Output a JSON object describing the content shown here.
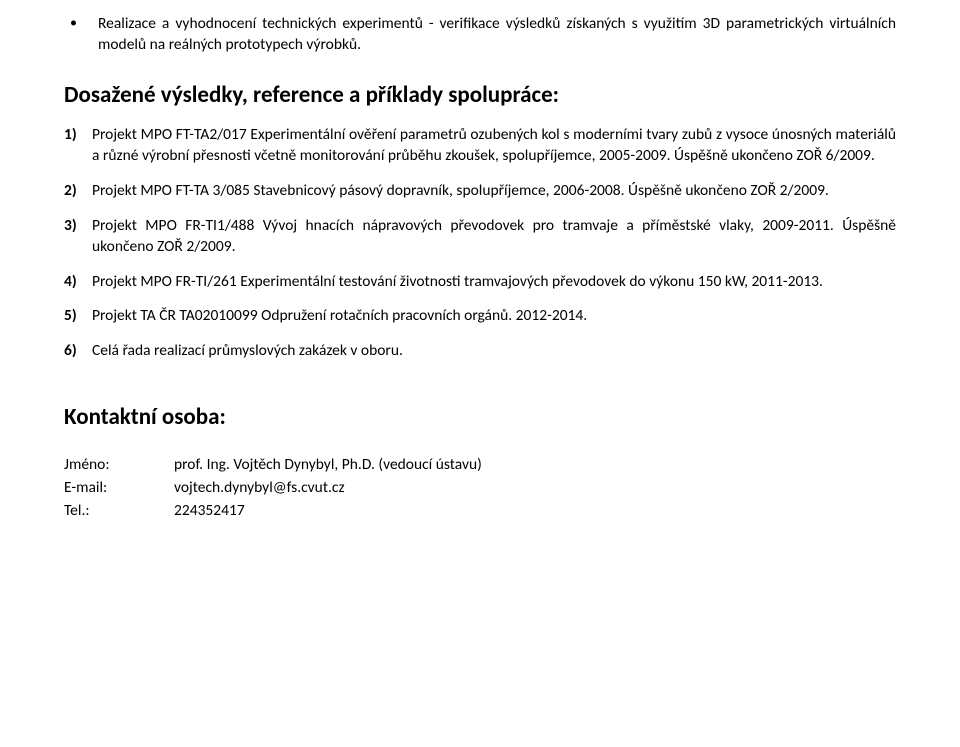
{
  "bullet": {
    "text": "Realizace a vyhodnocení technických experimentů - verifikace výsledků získaných s využitím 3D parametrických virtuálních modelů na reálných prototypech výrobků."
  },
  "results_heading": "Dosažené výsledky, reference a příklady spolupráce:",
  "items": [
    {
      "num": "1)",
      "text": "Projekt MPO FT-TA2/017 Experimentální ověření parametrů ozubených kol s moderními tvary zubů z vysoce únosných materiálů a různé výrobní přesnosti včetně monitorování průběhu zkoušek, spolupříjemce, 2005-2009. Úspěšně ukončeno ZOŘ 6/2009."
    },
    {
      "num": "2)",
      "text": "Projekt MPO FT-TA 3/085 Stavebnicový pásový dopravník, spolupříjemce, 2006-2008. Úspěšně ukončeno ZOŘ 2/2009."
    },
    {
      "num": "3)",
      "text": "Projekt MPO FR-TI1/488 Vývoj hnacích nápravových převodovek pro tramvaje a příměstské vlaky, 2009-2011. Úspěšně ukončeno ZOŘ 2/2009."
    },
    {
      "num": "4)",
      "text": "Projekt MPO FR-TI/261 Experimentální testování životnosti tramvajových převodovek do výkonu 150 kW, 2011-2013."
    },
    {
      "num": "5)",
      "text": "Projekt TA ČR TA02010099 Odpružení rotačních pracovních orgánů. 2012-2014."
    },
    {
      "num": "6)",
      "text": "Celá řada realizací průmyslových zakázek v oboru."
    }
  ],
  "contact_heading": "Kontaktní osoba:",
  "contact": {
    "name_label": "Jméno:",
    "name_value": "prof. Ing. Vojtěch Dynybyl, Ph.D. (vedoucí ústavu)",
    "email_label": "E-mail:",
    "email_value": "vojtech.dynybyl@fs.cvut.cz",
    "tel_label": "Tel.:",
    "tel_value": "224352417"
  }
}
